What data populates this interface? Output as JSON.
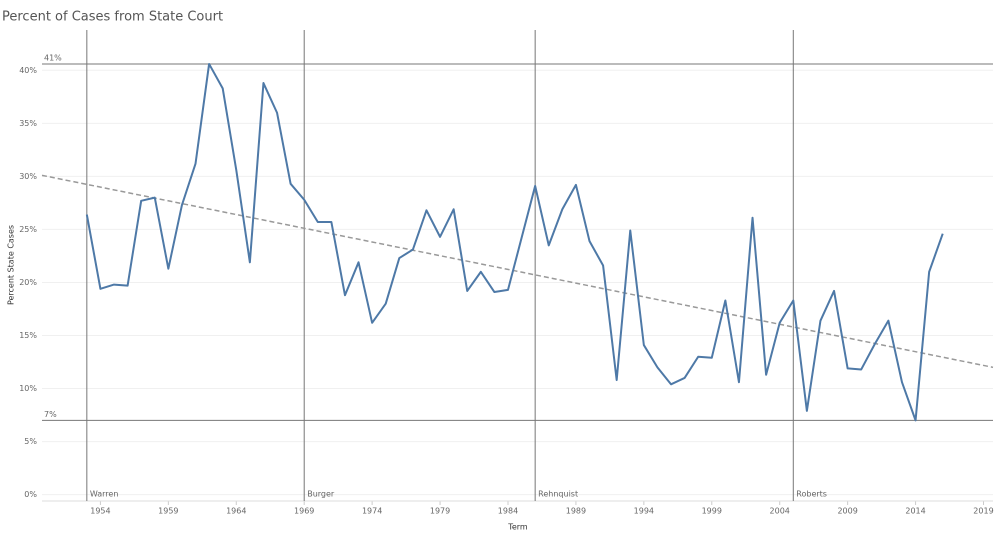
{
  "chart_data": {
    "type": "line",
    "title": "Percent of Cases from State Court",
    "x_label": "Term",
    "y_label": "Percent State Cases",
    "x": [
      1953,
      1954,
      1955,
      1956,
      1957,
      1958,
      1959,
      1960,
      1961,
      1962,
      1963,
      1964,
      1965,
      1966,
      1967,
      1968,
      1969,
      1970,
      1971,
      1972,
      1973,
      1974,
      1975,
      1976,
      1977,
      1978,
      1979,
      1980,
      1981,
      1982,
      1983,
      1984,
      1985,
      1986,
      1987,
      1988,
      1989,
      1990,
      1991,
      1992,
      1993,
      1994,
      1995,
      1996,
      1997,
      1998,
      1999,
      2000,
      2001,
      2002,
      2003,
      2004,
      2005,
      2006,
      2007,
      2008,
      2009,
      2010,
      2011,
      2012,
      2013,
      2014,
      2015,
      2016
    ],
    "values": [
      26.4,
      19.4,
      19.8,
      19.7,
      27.7,
      28.0,
      21.3,
      27.3,
      31.2,
      40.6,
      38.3,
      30.6,
      21.9,
      38.8,
      36.0,
      29.3,
      27.8,
      25.7,
      25.7,
      18.8,
      21.9,
      16.2,
      18.0,
      22.3,
      23.1,
      26.8,
      24.3,
      26.9,
      19.2,
      21.0,
      19.1,
      19.3,
      24.2,
      29.1,
      23.5,
      26.9,
      29.2,
      23.9,
      21.6,
      10.8,
      24.9,
      14.1,
      12.0,
      10.4,
      11.0,
      13.0,
      12.9,
      18.3,
      10.6,
      26.1,
      11.3,
      16.2,
      18.3,
      7.9,
      16.4,
      19.2,
      11.9,
      11.8,
      14.2,
      16.4,
      10.6,
      7.0,
      21.0,
      24.6
    ],
    "color": "#4e79a7",
    "trend_line": {
      "x": [
        1949.7,
        2019.7
      ],
      "values": [
        30.1,
        12.0
      ],
      "color": "#999999"
    },
    "reference_lines": [
      {
        "value": 40.6,
        "label": "41%"
      },
      {
        "value": 7.0,
        "label": "7%"
      }
    ],
    "eras": [
      {
        "x": 1953,
        "label": "Warren"
      },
      {
        "x": 1969,
        "label": "Burger"
      },
      {
        "x": 1986,
        "label": "Rehnquist"
      },
      {
        "x": 2005,
        "label": "Roberts"
      }
    ],
    "xlim": [
      1949.7,
      2019.7
    ],
    "xticks": [
      1954,
      1959,
      1964,
      1969,
      1974,
      1979,
      1984,
      1989,
      1994,
      1999,
      2004,
      2009,
      2014,
      2019
    ],
    "ylim": [
      -0.6,
      43.8
    ],
    "yticks": [
      {
        "value": 0,
        "label": "0%"
      },
      {
        "value": 5,
        "label": "5%"
      },
      {
        "value": 10,
        "label": "10%"
      },
      {
        "value": 15,
        "label": "15%"
      },
      {
        "value": 20,
        "label": "20%"
      },
      {
        "value": 25,
        "label": "25%"
      },
      {
        "value": 30,
        "label": "30%"
      },
      {
        "value": 35,
        "label": "35%"
      },
      {
        "value": 40,
        "label": "40%"
      }
    ],
    "grid": true
  }
}
